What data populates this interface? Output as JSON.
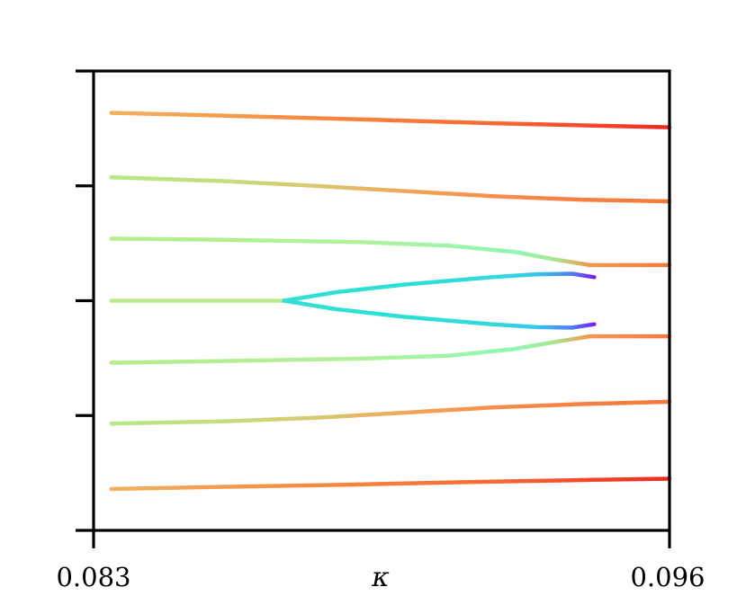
{
  "chart_data": {
    "type": "line",
    "title": "",
    "xlabel": "κ",
    "ylabel": "",
    "xlim": [
      0.083,
      0.096
    ],
    "ylim": [
      0,
      8
    ],
    "x_ticks": [
      {
        "value": 0.083,
        "label": "0.083"
      },
      {
        "value": 0.096,
        "label": "0.096"
      }
    ],
    "y_ticks": [
      0,
      2,
      4,
      6,
      8
    ],
    "y_tick_labels_shown": false,
    "colormap": "rainbow",
    "series": [
      {
        "id": "top",
        "points": [
          [
            0.0834,
            7.27
          ],
          [
            0.086,
            7.22
          ],
          [
            0.089,
            7.16
          ],
          [
            0.092,
            7.09
          ],
          [
            0.0943,
            7.05
          ],
          [
            0.096,
            7.02
          ]
        ],
        "colors": [
          "#f2b060",
          "#f59a4e",
          "#f7813d",
          "#f86a33",
          "#f5442a",
          "#f22a22"
        ]
      },
      {
        "id": "upper-2",
        "points": [
          [
            0.0834,
            6.15
          ],
          [
            0.086,
            6.08
          ],
          [
            0.088,
            6.0
          ],
          [
            0.09,
            5.91
          ],
          [
            0.092,
            5.82
          ],
          [
            0.094,
            5.76
          ],
          [
            0.096,
            5.73
          ]
        ],
        "colors": [
          "#b6e887",
          "#c6dc7e",
          "#d9c871",
          "#efa85c",
          "#f78f4a",
          "#f6803f",
          "#f7793c"
        ]
      },
      {
        "id": "upper-3",
        "points": [
          [
            0.0834,
            5.08
          ],
          [
            0.086,
            5.06
          ],
          [
            0.089,
            5.02
          ],
          [
            0.091,
            4.96
          ],
          [
            0.0925,
            4.85
          ],
          [
            0.0934,
            4.72
          ],
          [
            0.0942,
            4.62
          ],
          [
            0.096,
            4.62
          ]
        ],
        "colors": [
          "#b4ee8f",
          "#b3ef92",
          "#aff29a",
          "#a0f4a8",
          "#8ff7b6",
          "#a6e790",
          "#f49650",
          "#f7793c"
        ]
      },
      {
        "id": "lower-3",
        "points": [
          [
            0.0834,
            2.92
          ],
          [
            0.086,
            2.95
          ],
          [
            0.089,
            2.99
          ],
          [
            0.091,
            3.04
          ],
          [
            0.0925,
            3.16
          ],
          [
            0.0934,
            3.28
          ],
          [
            0.0942,
            3.38
          ],
          [
            0.096,
            3.38
          ]
        ],
        "colors": [
          "#b4ee8f",
          "#b3ef92",
          "#aff29a",
          "#a0f4a8",
          "#8ff7b6",
          "#a6e790",
          "#f49650",
          "#f7793c"
        ]
      },
      {
        "id": "lower-2",
        "points": [
          [
            0.0834,
            1.86
          ],
          [
            0.086,
            1.9
          ],
          [
            0.088,
            1.96
          ],
          [
            0.09,
            2.05
          ],
          [
            0.092,
            2.14
          ],
          [
            0.094,
            2.2
          ],
          [
            0.096,
            2.24
          ]
        ],
        "colors": [
          "#b6e887",
          "#c6dc7e",
          "#d9c871",
          "#efa85c",
          "#f78f4a",
          "#f6803f",
          "#f7793c"
        ]
      },
      {
        "id": "bottom",
        "points": [
          [
            0.0834,
            0.72
          ],
          [
            0.086,
            0.76
          ],
          [
            0.089,
            0.8
          ],
          [
            0.092,
            0.85
          ],
          [
            0.0943,
            0.88
          ],
          [
            0.096,
            0.9
          ]
        ],
        "colors": [
          "#f2b060",
          "#f59a4e",
          "#f7813d",
          "#f86a33",
          "#f5442a",
          "#f22a22"
        ]
      },
      {
        "id": "middle-stem",
        "points": [
          [
            0.0834,
            4.0
          ],
          [
            0.0873,
            4.0
          ]
        ],
        "colors": [
          "#b8ea8b",
          "#b8ea8b"
        ]
      },
      {
        "id": "branch-upper",
        "points": [
          [
            0.0873,
            4.0
          ],
          [
            0.0885,
            4.15
          ],
          [
            0.09,
            4.28
          ],
          [
            0.092,
            4.41
          ],
          [
            0.093,
            4.46
          ],
          [
            0.0938,
            4.47
          ],
          [
            0.0943,
            4.41
          ]
        ],
        "colors": [
          "#38ddd5",
          "#2ee1d3",
          "#2ce0d6",
          "#33d9dc",
          "#35c8e8",
          "#4f7cf5",
          "#7a1ef2"
        ]
      },
      {
        "id": "branch-lower",
        "points": [
          [
            0.0873,
            4.0
          ],
          [
            0.0885,
            3.85
          ],
          [
            0.09,
            3.72
          ],
          [
            0.092,
            3.59
          ],
          [
            0.093,
            3.54
          ],
          [
            0.0938,
            3.53
          ],
          [
            0.0943,
            3.59
          ]
        ],
        "colors": [
          "#38ddd5",
          "#2ee1d3",
          "#2ce0d6",
          "#33d9dc",
          "#35c8e8",
          "#4f7cf5",
          "#7a1ef2"
        ]
      }
    ]
  }
}
